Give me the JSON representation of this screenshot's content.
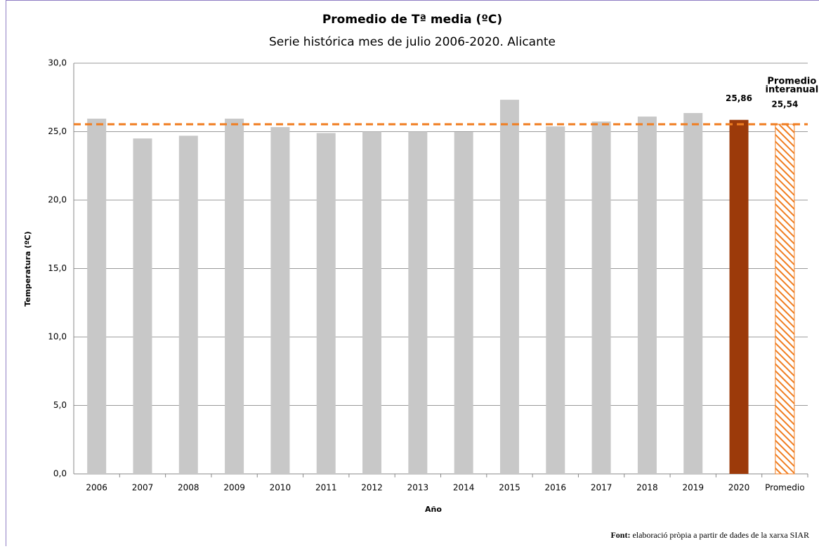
{
  "chart_data": {
    "type": "bar",
    "title": "Promedio de Tª media (ºC)",
    "subtitle": "Serie histórica mes de julio 2006-2020. Alicante",
    "x_label": "Año",
    "y_label": "Temperatura (ºC)",
    "categories": [
      "2006",
      "2007",
      "2008",
      "2009",
      "2010",
      "2011",
      "2012",
      "2013",
      "2014",
      "2015",
      "2016",
      "2017",
      "2018",
      "2019",
      "2020",
      "Promedio"
    ],
    "values": [
      25.95,
      24.5,
      24.7,
      25.95,
      25.33,
      24.9,
      25.0,
      25.0,
      24.97,
      27.33,
      25.38,
      25.74,
      26.1,
      26.36,
      25.86,
      25.54
    ],
    "value_labels": [
      null,
      null,
      null,
      null,
      null,
      null,
      null,
      null,
      null,
      null,
      null,
      null,
      null,
      null,
      "25,86",
      "25,54"
    ],
    "colors": [
      "#c8c8c8",
      "#c8c8c8",
      "#c8c8c8",
      "#c8c8c8",
      "#c8c8c8",
      "#c8c8c8",
      "#c8c8c8",
      "#c8c8c8",
      "#c8c8c8",
      "#c8c8c8",
      "#c8c8c8",
      "#c8c8c8",
      "#c8c8c8",
      "#c8c8c8",
      "#9c3a0a",
      "#f07d20"
    ],
    "hatched": [
      false,
      false,
      false,
      false,
      false,
      false,
      false,
      false,
      false,
      false,
      false,
      false,
      false,
      false,
      false,
      true
    ],
    "average_line_color": "#f07d20",
    "annotation": [
      "Promedio",
      "interanual"
    ],
    "ylim": [
      0,
      30
    ],
    "yticks": [
      {
        "value": 0,
        "label": "0,0"
      },
      {
        "value": 5,
        "label": "5,0"
      },
      {
        "value": 10,
        "label": "10,0"
      },
      {
        "value": 15,
        "label": "15,0"
      },
      {
        "value": 20,
        "label": "20,0"
      },
      {
        "value": 25,
        "label": "25,0"
      },
      {
        "value": 30,
        "label": "30,0"
      }
    ],
    "grid": true,
    "source_label": "Font:",
    "source": "elaboració pròpia a partir de dades de la xarxa SIAR"
  }
}
